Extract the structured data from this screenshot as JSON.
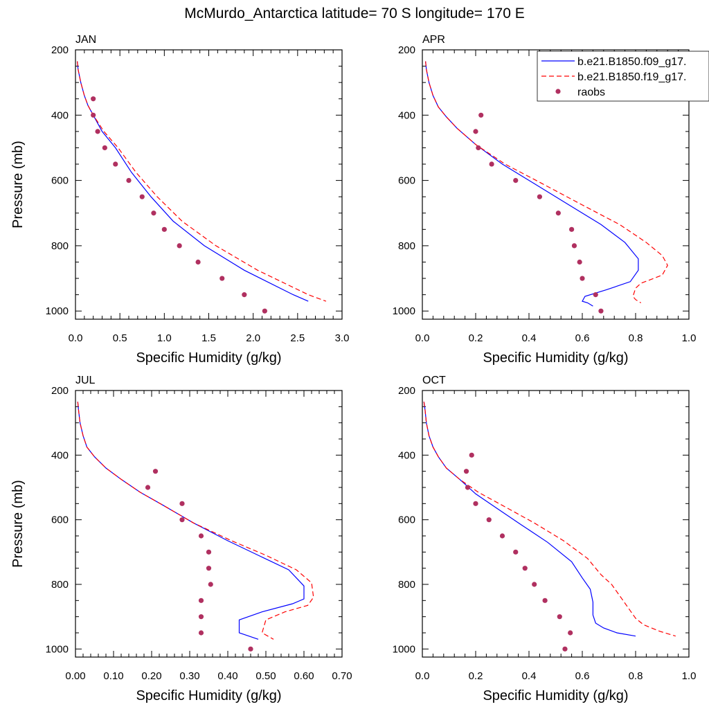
{
  "page": {
    "title": "McMurdo_Antarctica  latitude= 70 S longitude= 170 E"
  },
  "legend": {
    "placement": "top-right of APR panel",
    "entries": [
      {
        "label": "b.e21.B1850.f09_g17.",
        "style": "solid",
        "color": "#0000ff"
      },
      {
        "label": "b.e21.B1850.f19_g17.",
        "style": "dashed",
        "color": "#ff0000"
      },
      {
        "label": "raobs",
        "style": "marker",
        "color": "#b03060"
      }
    ]
  },
  "colors": {
    "model_f09": "#0000ff",
    "model_f19": "#ff0000",
    "raobs": "#b03060"
  },
  "chart_data": [
    {
      "type": "line",
      "title": "JAN",
      "xlabel": "Specific Humidity (g/kg)",
      "ylabel": "Pressure (mb)",
      "xlim": [
        0,
        3.0
      ],
      "ylim": [
        200,
        1025
      ],
      "y_inverted": true,
      "xticks": [
        0,
        0.5,
        1.0,
        1.5,
        2.0,
        2.5,
        3.0
      ],
      "xtick_labels": [
        "0.0",
        "0.5",
        "1.0",
        "1.5",
        "2.0",
        "2.5",
        "3.0"
      ],
      "yticks": [
        200,
        400,
        600,
        800,
        1000
      ],
      "ytick_labels": [
        "200",
        "400",
        "600",
        "800",
        "1000"
      ],
      "series": [
        {
          "name": "b.e21.B1850.f09_g17.",
          "kind": "line",
          "dash": "solid",
          "x": [
            0.02,
            0.03,
            0.06,
            0.1,
            0.14,
            0.2,
            0.3,
            0.45,
            0.63,
            0.85,
            1.1,
            1.45,
            1.9,
            2.45,
            2.62
          ],
          "y": [
            235,
            260,
            300,
            340,
            370,
            400,
            450,
            500,
            575,
            650,
            725,
            800,
            875,
            950,
            970
          ]
        },
        {
          "name": "b.e21.B1850.f19_g17.",
          "kind": "line",
          "dash": "dashed",
          "x": [
            0.02,
            0.03,
            0.06,
            0.1,
            0.14,
            0.2,
            0.32,
            0.48,
            0.68,
            0.92,
            1.2,
            1.58,
            2.05,
            2.62,
            2.82
          ],
          "y": [
            235,
            260,
            300,
            340,
            370,
            400,
            450,
            500,
            575,
            650,
            725,
            800,
            875,
            950,
            970
          ]
        },
        {
          "name": "raobs",
          "kind": "marker",
          "x": [
            0.2,
            0.2,
            0.25,
            0.33,
            0.45,
            0.6,
            0.75,
            0.88,
            1.0,
            1.17,
            1.38,
            1.65,
            1.9,
            2.13
          ],
          "y": [
            350,
            400,
            450,
            500,
            550,
            600,
            650,
            700,
            750,
            800,
            850,
            900,
            950,
            1000
          ]
        }
      ]
    },
    {
      "type": "line",
      "title": "APR",
      "xlabel": "Specific Humidity (g/kg)",
      "ylabel": "",
      "xlim": [
        0,
        1.0
      ],
      "ylim": [
        200,
        1025
      ],
      "y_inverted": true,
      "xticks": [
        0,
        0.2,
        0.4,
        0.6,
        0.8,
        1.0
      ],
      "xtick_labels": [
        "0.0",
        "0.2",
        "0.4",
        "0.6",
        "0.8",
        "1.0"
      ],
      "yticks": [
        200,
        400,
        600,
        800,
        1000
      ],
      "ytick_labels": [
        "200",
        "400",
        "600",
        "800",
        "1000"
      ],
      "series": [
        {
          "name": "b.e21.B1850.f09_g17.",
          "kind": "line",
          "dash": "solid",
          "x": [
            0.012,
            0.015,
            0.025,
            0.04,
            0.06,
            0.09,
            0.13,
            0.2,
            0.3,
            0.42,
            0.55,
            0.67,
            0.76,
            0.81,
            0.81,
            0.78,
            0.69,
            0.61,
            0.6,
            0.62,
            0.64
          ],
          "y": [
            235,
            260,
            300,
            340,
            375,
            405,
            440,
            490,
            550,
            610,
            675,
            735,
            790,
            840,
            875,
            910,
            935,
            955,
            970,
            975,
            985
          ]
        },
        {
          "name": "b.e21.B1850.f19_g17.",
          "kind": "line",
          "dash": "dashed",
          "x": [
            0.012,
            0.015,
            0.025,
            0.04,
            0.06,
            0.09,
            0.13,
            0.2,
            0.31,
            0.45,
            0.6,
            0.74,
            0.84,
            0.9,
            0.92,
            0.9,
            0.82,
            0.8,
            0.79,
            0.8,
            0.82
          ],
          "y": [
            235,
            260,
            300,
            340,
            375,
            405,
            440,
            490,
            550,
            610,
            675,
            735,
            790,
            830,
            860,
            890,
            915,
            930,
            955,
            965,
            975
          ]
        },
        {
          "name": "raobs",
          "kind": "marker",
          "x": [
            0.22,
            0.2,
            0.21,
            0.26,
            0.35,
            0.44,
            0.51,
            0.56,
            0.57,
            0.59,
            0.6,
            0.65,
            0.67
          ],
          "y": [
            400,
            450,
            500,
            550,
            600,
            650,
            700,
            750,
            800,
            850,
            900,
            950,
            1000
          ]
        }
      ]
    },
    {
      "type": "line",
      "title": "JUL",
      "xlabel": "Specific Humidity (g/kg)",
      "ylabel": "Pressure (mb)",
      "xlim": [
        0,
        0.7
      ],
      "ylim": [
        200,
        1025
      ],
      "y_inverted": true,
      "xticks": [
        0,
        0.1,
        0.2,
        0.3,
        0.4,
        0.5,
        0.6,
        0.7
      ],
      "xtick_labels": [
        "0.00",
        "0.10",
        "0.20",
        "0.30",
        "0.40",
        "0.50",
        "0.60",
        "0.70"
      ],
      "yticks": [
        200,
        400,
        600,
        800,
        1000
      ],
      "ytick_labels": [
        "200",
        "400",
        "600",
        "800",
        "1000"
      ],
      "series": [
        {
          "name": "b.e21.B1850.f09_g17.",
          "kind": "line",
          "dash": "solid",
          "x": [
            0.006,
            0.008,
            0.012,
            0.02,
            0.03,
            0.05,
            0.08,
            0.12,
            0.17,
            0.23,
            0.31,
            0.4,
            0.48,
            0.56,
            0.6,
            0.6,
            0.57,
            0.49,
            0.43,
            0.43,
            0.48
          ],
          "y": [
            235,
            260,
            300,
            340,
            375,
            405,
            440,
            475,
            515,
            555,
            610,
            665,
            710,
            755,
            805,
            845,
            860,
            885,
            910,
            950,
            970
          ]
        },
        {
          "name": "b.e21.B1850.f19_g17.",
          "kind": "line",
          "dash": "dashed",
          "x": [
            0.006,
            0.008,
            0.012,
            0.02,
            0.03,
            0.05,
            0.08,
            0.12,
            0.17,
            0.23,
            0.31,
            0.41,
            0.5,
            0.58,
            0.62,
            0.625,
            0.61,
            0.55,
            0.5,
            0.49,
            0.52
          ],
          "y": [
            235,
            260,
            300,
            340,
            375,
            405,
            440,
            475,
            515,
            555,
            610,
            665,
            710,
            755,
            795,
            840,
            865,
            885,
            910,
            950,
            970
          ]
        },
        {
          "name": "raobs",
          "kind": "marker",
          "x": [
            0.21,
            0.19,
            0.28,
            0.28,
            0.33,
            0.35,
            0.35,
            0.355,
            0.33,
            0.33,
            0.33,
            0.46
          ],
          "y": [
            450,
            500,
            550,
            600,
            650,
            700,
            750,
            800,
            850,
            900,
            950,
            1000
          ]
        }
      ]
    },
    {
      "type": "line",
      "title": "OCT",
      "xlabel": "Specific Humidity (g/kg)",
      "ylabel": "",
      "xlim": [
        0,
        1.0
      ],
      "ylim": [
        200,
        1025
      ],
      "y_inverted": true,
      "xticks": [
        0,
        0.2,
        0.4,
        0.6,
        0.8,
        1.0
      ],
      "xtick_labels": [
        "0.0",
        "0.2",
        "0.4",
        "0.6",
        "0.8",
        "1.0"
      ],
      "yticks": [
        200,
        400,
        600,
        800,
        1000
      ],
      "ytick_labels": [
        "200",
        "400",
        "600",
        "800",
        "1000"
      ],
      "series": [
        {
          "name": "b.e21.B1850.f09_g17.",
          "kind": "line",
          "dash": "solid",
          "x": [
            0.006,
            0.01,
            0.015,
            0.025,
            0.04,
            0.06,
            0.09,
            0.14,
            0.2,
            0.28,
            0.37,
            0.47,
            0.56,
            0.6,
            0.63,
            0.64,
            0.64,
            0.65,
            0.68,
            0.73,
            0.8
          ],
          "y": [
            235,
            260,
            300,
            340,
            375,
            405,
            440,
            475,
            520,
            565,
            615,
            670,
            730,
            780,
            815,
            855,
            895,
            920,
            935,
            950,
            960
          ]
        },
        {
          "name": "b.e21.B1850.f19_g17.",
          "kind": "line",
          "dash": "dashed",
          "x": [
            0.006,
            0.01,
            0.015,
            0.025,
            0.04,
            0.06,
            0.09,
            0.14,
            0.21,
            0.31,
            0.42,
            0.53,
            0.62,
            0.67,
            0.71,
            0.74,
            0.77,
            0.8,
            0.83,
            0.89,
            0.95
          ],
          "y": [
            235,
            260,
            300,
            340,
            375,
            405,
            440,
            475,
            515,
            560,
            610,
            665,
            720,
            770,
            800,
            835,
            870,
            905,
            925,
            945,
            960
          ]
        },
        {
          "name": "raobs",
          "kind": "marker",
          "x": [
            0.185,
            0.165,
            0.17,
            0.2,
            0.25,
            0.3,
            0.35,
            0.385,
            0.42,
            0.46,
            0.515,
            0.555,
            0.535
          ],
          "y": [
            400,
            450,
            500,
            550,
            600,
            650,
            700,
            750,
            800,
            850,
            900,
            950,
            1000
          ]
        }
      ]
    }
  ]
}
